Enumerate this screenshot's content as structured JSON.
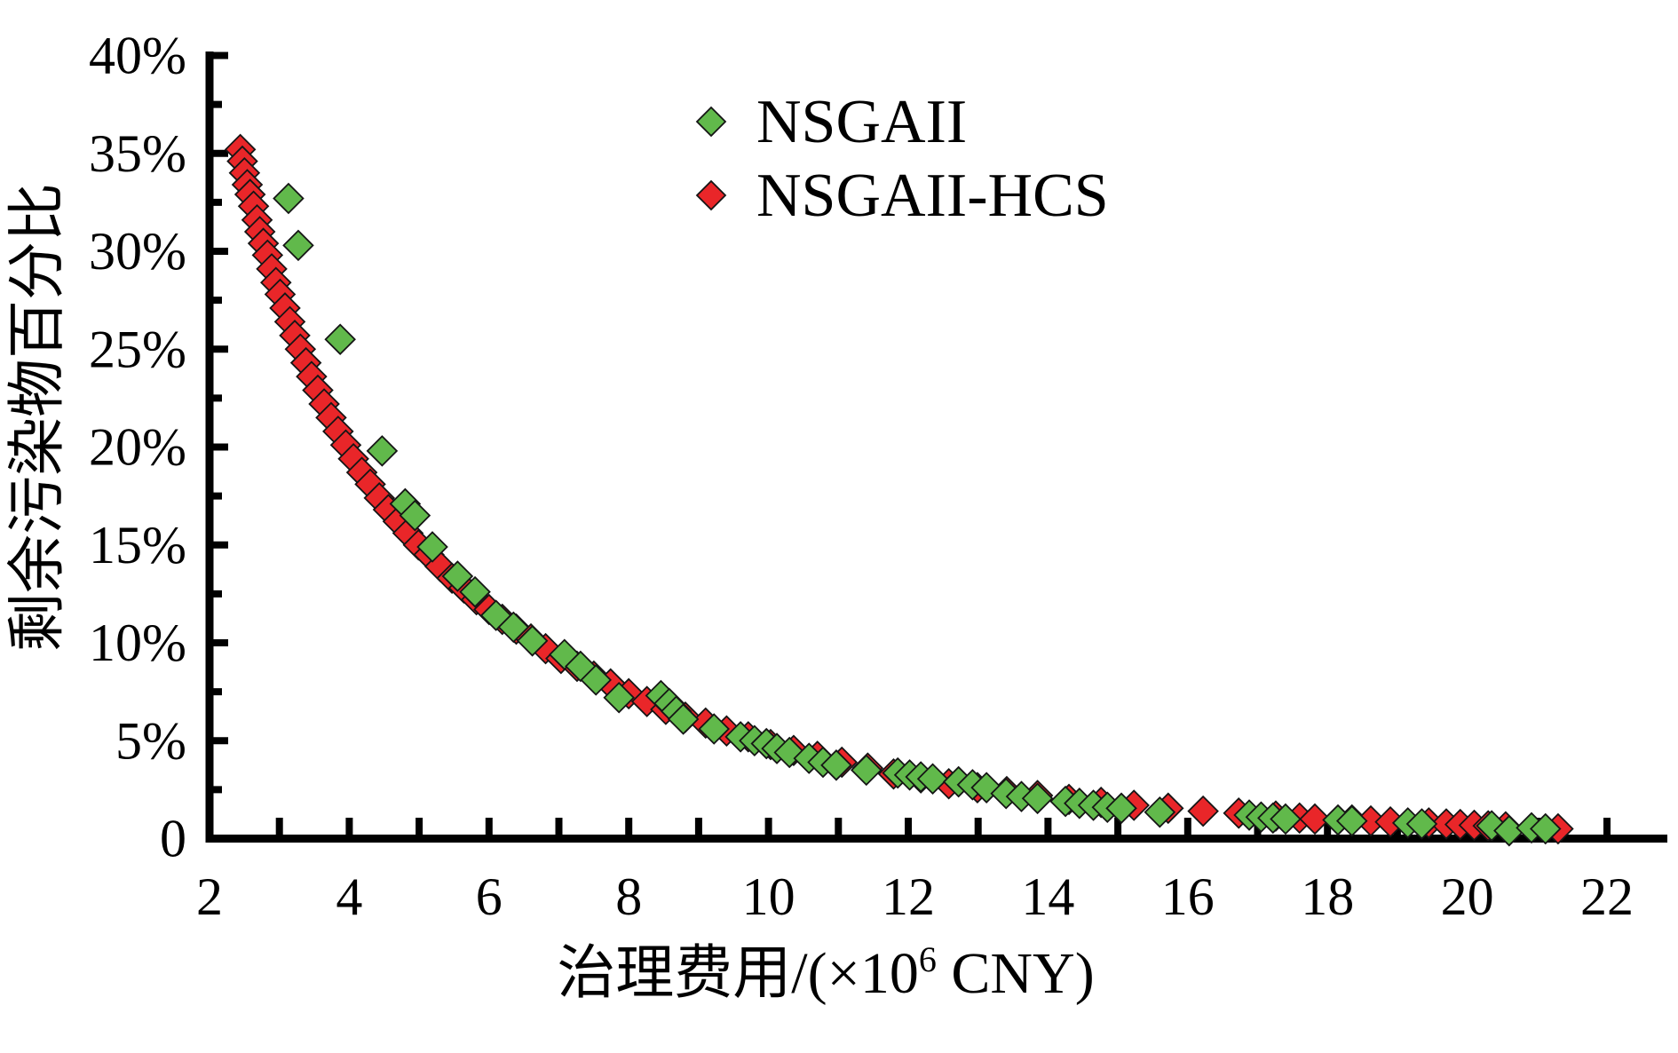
{
  "chart_data": {
    "type": "scatter",
    "title": "",
    "xlabel": {
      "prefix": "治理费用/(×10",
      "sup": "6",
      "suffix": " CNY)",
      "full": "治理费用/(×10⁶ CNY)"
    },
    "ylabel": "剩余污染物百分比",
    "xlim": [
      2,
      22
    ],
    "ylim": [
      0,
      40
    ],
    "grid": false,
    "x_tick_step": 1,
    "x_label_values": [
      2,
      4,
      6,
      8,
      10,
      12,
      14,
      16,
      18,
      20,
      22
    ],
    "y_tick_step": 2.5,
    "y_major_step": 5,
    "y_tick_labels": [
      {
        "value": 0,
        "text": "0"
      },
      {
        "value": 5,
        "text": "5%"
      },
      {
        "value": 10,
        "text": "10%"
      },
      {
        "value": 15,
        "text": "15%"
      },
      {
        "value": 20,
        "text": "20%"
      },
      {
        "value": 25,
        "text": "25%"
      },
      {
        "value": 30,
        "text": "30%"
      },
      {
        "value": 35,
        "text": "35%"
      },
      {
        "value": 40,
        "text": "40%"
      }
    ],
    "legend_position": "upper-left-inside",
    "series": [
      {
        "name": "NSGAII",
        "marker": "diamond",
        "color": "#61b94b",
        "points": [
          [
            3.13,
            32.7
          ],
          [
            3.27,
            30.3
          ],
          [
            3.87,
            25.5
          ],
          [
            4.47,
            19.8
          ],
          [
            4.8,
            17.1
          ],
          [
            4.94,
            16.5
          ],
          [
            5.19,
            14.9
          ],
          [
            5.55,
            13.4
          ],
          [
            5.8,
            12.6
          ],
          [
            6.1,
            11.4
          ],
          [
            6.35,
            10.8
          ],
          [
            6.62,
            10.1
          ],
          [
            7.08,
            9.4
          ],
          [
            7.31,
            8.8
          ],
          [
            7.53,
            8.1
          ],
          [
            7.86,
            7.2
          ],
          [
            8.46,
            7.3
          ],
          [
            8.58,
            6.9
          ],
          [
            8.68,
            6.5
          ],
          [
            8.78,
            6.1
          ],
          [
            9.22,
            5.6
          ],
          [
            9.6,
            5.2
          ],
          [
            9.8,
            5.0
          ],
          [
            9.97,
            4.85
          ],
          [
            10.12,
            4.6
          ],
          [
            10.3,
            4.4
          ],
          [
            10.58,
            4.1
          ],
          [
            10.78,
            3.9
          ],
          [
            10.97,
            3.75
          ],
          [
            11.4,
            3.5
          ],
          [
            11.85,
            3.35
          ],
          [
            12.02,
            3.25
          ],
          [
            12.18,
            3.15
          ],
          [
            12.35,
            3.05
          ],
          [
            12.72,
            2.9
          ],
          [
            12.92,
            2.75
          ],
          [
            13.12,
            2.6
          ],
          [
            13.4,
            2.3
          ],
          [
            13.62,
            2.15
          ],
          [
            13.85,
            2.05
          ],
          [
            14.25,
            1.9
          ],
          [
            14.45,
            1.8
          ],
          [
            14.65,
            1.7
          ],
          [
            14.85,
            1.6
          ],
          [
            15.05,
            1.55
          ],
          [
            15.6,
            1.35
          ],
          [
            16.88,
            1.2
          ],
          [
            17.05,
            1.1
          ],
          [
            17.22,
            1.05
          ],
          [
            17.4,
            1.0
          ],
          [
            18.15,
            0.95
          ],
          [
            18.35,
            0.9
          ],
          [
            19.15,
            0.8
          ],
          [
            19.35,
            0.75
          ],
          [
            20.35,
            0.65
          ],
          [
            20.6,
            0.4
          ],
          [
            20.92,
            0.55
          ],
          [
            21.12,
            0.5
          ]
        ]
      },
      {
        "name": "NSGAII-HCS",
        "marker": "diamond",
        "color": "#e92629",
        "points": [
          [
            2.44,
            35.2
          ],
          [
            2.47,
            34.6
          ],
          [
            2.5,
            34.0
          ],
          [
            2.54,
            33.4
          ],
          [
            2.58,
            32.9
          ],
          [
            2.63,
            32.3
          ],
          [
            2.68,
            31.6
          ],
          [
            2.72,
            31.0
          ],
          [
            2.77,
            30.4
          ],
          [
            2.83,
            29.8
          ],
          [
            2.89,
            29.1
          ],
          [
            2.95,
            28.4
          ],
          [
            3.01,
            27.8
          ],
          [
            3.08,
            27.1
          ],
          [
            3.15,
            26.4
          ],
          [
            3.22,
            25.7
          ],
          [
            3.3,
            25.0
          ],
          [
            3.38,
            24.3
          ],
          [
            3.46,
            23.6
          ],
          [
            3.55,
            22.9
          ],
          [
            3.64,
            22.2
          ],
          [
            3.74,
            21.5
          ],
          [
            3.84,
            20.8
          ],
          [
            3.95,
            20.1
          ],
          [
            4.06,
            19.4
          ],
          [
            4.18,
            18.7
          ],
          [
            4.3,
            18.1
          ],
          [
            4.43,
            17.4
          ],
          [
            4.56,
            16.8
          ],
          [
            4.7,
            16.2
          ],
          [
            4.84,
            15.6
          ],
          [
            4.99,
            15.0
          ],
          [
            5.14,
            14.5
          ],
          [
            5.3,
            13.9
          ],
          [
            5.47,
            13.3
          ],
          [
            5.64,
            12.8
          ],
          [
            5.82,
            12.2
          ],
          [
            6.0,
            11.7
          ],
          [
            6.19,
            11.2
          ],
          [
            6.39,
            10.7
          ],
          [
            6.6,
            10.2
          ],
          [
            6.81,
            9.7
          ],
          [
            7.03,
            9.2
          ],
          [
            7.26,
            8.8
          ],
          [
            7.5,
            8.3
          ],
          [
            7.74,
            7.9
          ],
          [
            8.0,
            7.4
          ],
          [
            8.26,
            7.0
          ],
          [
            8.53,
            6.6
          ],
          [
            8.81,
            6.2
          ],
          [
            9.1,
            5.9
          ],
          [
            9.4,
            5.5
          ],
          [
            9.71,
            5.2
          ],
          [
            10.03,
            4.8
          ],
          [
            10.36,
            4.5
          ],
          [
            10.7,
            4.2
          ],
          [
            11.05,
            3.9
          ],
          [
            11.42,
            3.6
          ],
          [
            11.79,
            3.3
          ],
          [
            12.18,
            3.1
          ],
          [
            12.58,
            2.8
          ],
          [
            12.99,
            2.6
          ],
          [
            13.41,
            2.4
          ],
          [
            13.85,
            2.2
          ],
          [
            14.3,
            2.0
          ],
          [
            14.76,
            1.85
          ],
          [
            15.23,
            1.7
          ],
          [
            15.72,
            1.55
          ],
          [
            16.22,
            1.4
          ],
          [
            16.73,
            1.3
          ],
          [
            17.26,
            1.15
          ],
          [
            17.6,
            1.05
          ],
          [
            17.82,
            1.0
          ],
          [
            18.35,
            0.95
          ],
          [
            18.62,
            0.9
          ],
          [
            18.9,
            0.85
          ],
          [
            19.45,
            0.8
          ],
          [
            19.7,
            0.75
          ],
          [
            19.9,
            0.72
          ],
          [
            20.1,
            0.68
          ],
          [
            20.3,
            0.65
          ],
          [
            20.55,
            0.6
          ],
          [
            21.3,
            0.5
          ]
        ]
      }
    ]
  }
}
